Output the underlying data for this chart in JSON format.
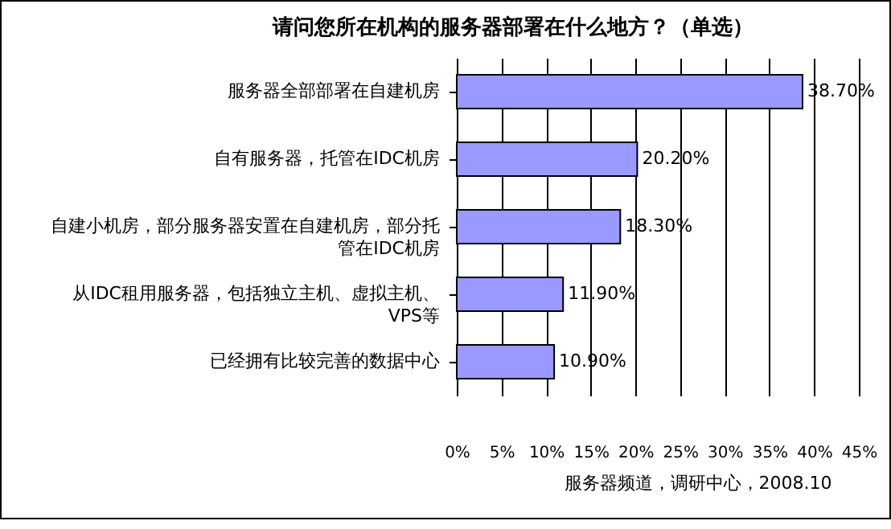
{
  "chart_data": {
    "type": "bar",
    "orientation": "horizontal",
    "title": "请问您所在机构的服务器部署在什么地方？（单选）",
    "categories": [
      "服务器全部部署在自建机房",
      "自有服务器，托管在IDC机房",
      "自建小机房，部分服务器安置在自建机房，部分托管在IDC机房",
      "从IDC租用服务器，包括独立主机、虚拟主机、VPS等",
      "已经拥有比较完善的数据中心"
    ],
    "values": [
      38.7,
      20.2,
      18.3,
      11.9,
      10.9
    ],
    "value_labels": [
      "38.70%",
      "20.20%",
      "18.30%",
      "11.90%",
      "10.90%"
    ],
    "color": "#9999ff",
    "xlim": [
      0,
      45
    ],
    "xticks": [
      {
        "value": 0,
        "label": "0%"
      },
      {
        "value": 5,
        "label": "5%"
      },
      {
        "value": 10,
        "label": "10%"
      },
      {
        "value": 15,
        "label": "15%"
      },
      {
        "value": 20,
        "label": "20%"
      },
      {
        "value": 25,
        "label": "25%"
      },
      {
        "value": 30,
        "label": "30%"
      },
      {
        "value": 35,
        "label": "35%"
      },
      {
        "value": 40,
        "label": "40%"
      },
      {
        "value": 45,
        "label": "45%"
      }
    ],
    "grid": "x",
    "annotations": [
      "服务器频道，调研中心，2008.10"
    ]
  }
}
